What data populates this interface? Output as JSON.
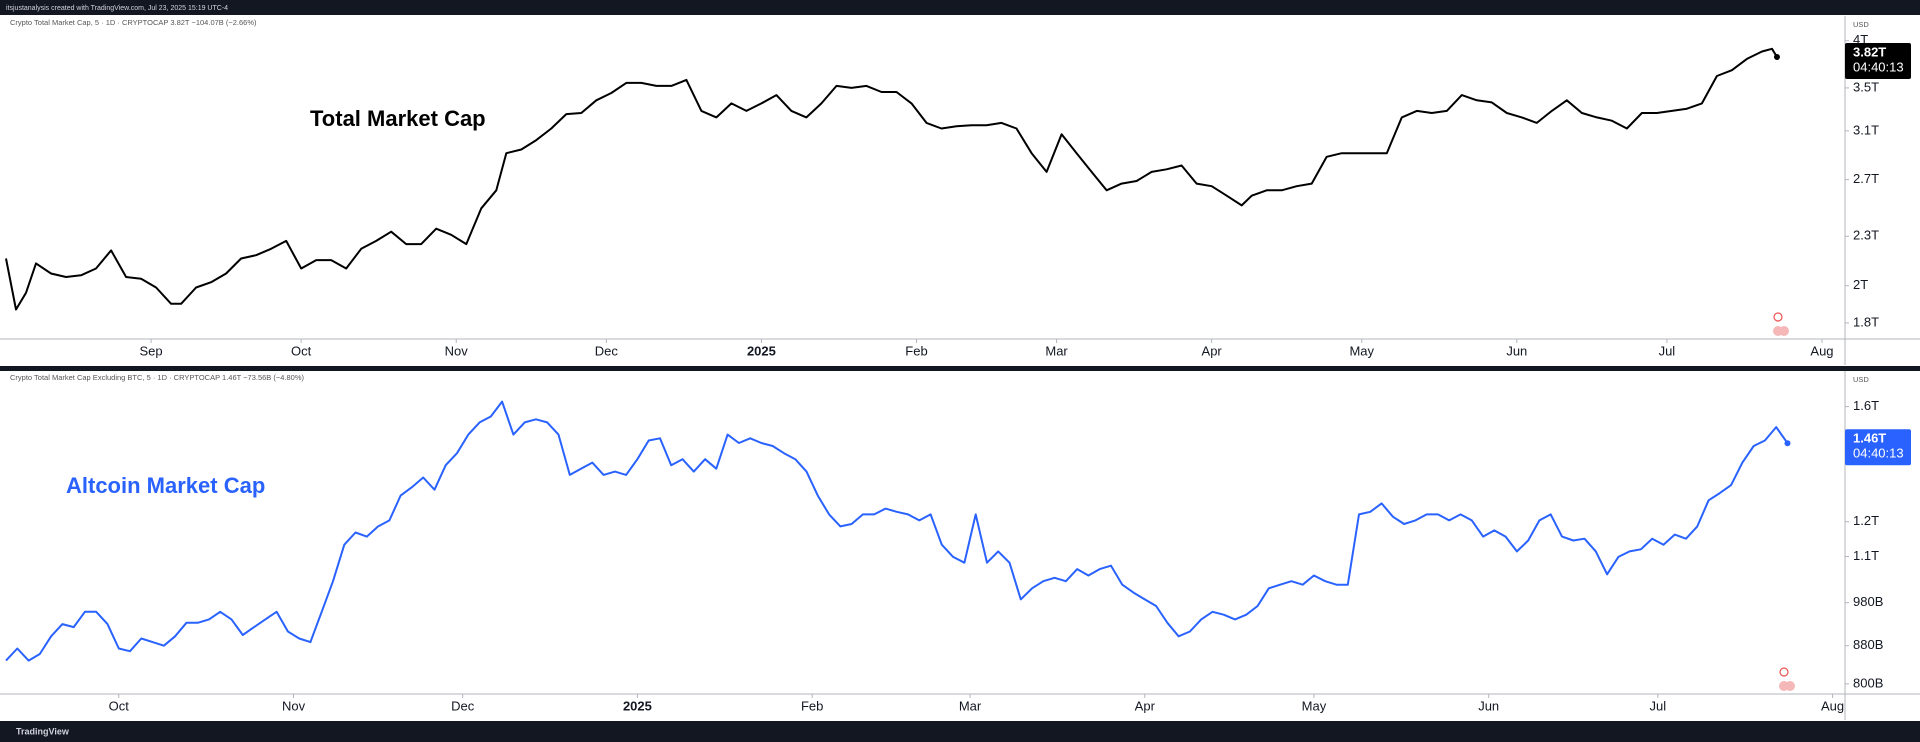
{
  "header": "itsjustanalysis created with TradingView.com, Jul 23, 2025 15:19 UTC-4",
  "footer": "TradingView",
  "chart_data": [
    {
      "type": "line",
      "subtitle": "Crypto Total Market Cap, 5 · 1D · CRYPTOCAP  3.82T  −104.07B (−2.66%)",
      "annotation": "Total Market Cap",
      "currency": "USD",
      "last_label": "3.82T",
      "countdown": "04:40:13",
      "color": "#000000",
      "box_color": "#000000",
      "log_scale": true,
      "x": [
        0,
        2,
        4,
        6,
        9,
        12,
        15,
        18,
        21,
        24,
        27,
        30,
        33,
        35,
        38,
        41,
        44,
        47,
        50,
        53,
        56,
        59,
        62,
        65,
        68,
        71,
        74,
        77,
        80,
        83,
        86,
        89,
        92,
        95,
        98,
        100,
        103,
        106,
        109,
        112,
        115,
        118,
        121,
        124,
        127,
        130,
        133,
        136,
        139,
        142,
        145,
        148,
        151,
        154,
        157,
        160,
        163,
        166,
        169,
        172,
        175,
        178,
        181,
        184,
        187,
        190,
        193,
        196,
        199,
        202,
        205,
        208,
        211,
        214,
        217,
        220,
        223,
        226,
        229,
        232,
        235,
        238,
        241,
        244,
        247,
        249,
        252,
        255,
        258,
        261,
        264,
        267,
        270,
        273,
        276,
        279,
        282,
        285,
        288,
        291,
        294,
        297,
        300,
        303,
        306,
        309,
        312,
        315,
        318,
        321,
        324,
        327,
        330,
        333,
        336,
        339,
        342,
        345,
        348,
        351,
        353,
        354
      ],
      "values": [
        2.16,
        1.87,
        1.96,
        2.13,
        2.07,
        2.05,
        2.06,
        2.1,
        2.21,
        2.05,
        2.04,
        1.99,
        1.9,
        1.9,
        1.99,
        2.02,
        2.07,
        2.16,
        2.18,
        2.22,
        2.27,
        2.1,
        2.15,
        2.15,
        2.1,
        2.22,
        2.27,
        2.33,
        2.25,
        2.25,
        2.35,
        2.31,
        2.25,
        2.49,
        2.62,
        2.91,
        2.94,
        3.02,
        3.12,
        3.25,
        3.26,
        3.38,
        3.45,
        3.55,
        3.55,
        3.52,
        3.52,
        3.58,
        3.28,
        3.22,
        3.35,
        3.28,
        3.35,
        3.43,
        3.28,
        3.22,
        3.35,
        3.52,
        3.5,
        3.52,
        3.46,
        3.46,
        3.35,
        3.17,
        3.12,
        3.14,
        3.15,
        3.15,
        3.17,
        3.12,
        2.91,
        2.76,
        3.07,
        2.91,
        2.76,
        2.62,
        2.67,
        2.69,
        2.76,
        2.78,
        2.81,
        2.67,
        2.65,
        2.58,
        2.51,
        2.58,
        2.62,
        2.62,
        2.65,
        2.67,
        2.88,
        2.91,
        2.91,
        2.91,
        2.91,
        3.22,
        3.28,
        3.26,
        3.28,
        3.43,
        3.38,
        3.36,
        3.26,
        3.22,
        3.17,
        3.28,
        3.38,
        3.26,
        3.22,
        3.19,
        3.12,
        3.26,
        3.26,
        3.28,
        3.3,
        3.35,
        3.62,
        3.68,
        3.8,
        3.88,
        3.91,
        3.82
      ],
      "xlim": [
        0,
        367.6
      ],
      "xticks": [
        {
          "value": 29,
          "label": "Sep"
        },
        {
          "value": 59,
          "label": "Oct"
        },
        {
          "value": 90,
          "label": "Nov"
        },
        {
          "value": 120,
          "label": "Dec"
        },
        {
          "value": 151,
          "label": "2025"
        },
        {
          "value": 182,
          "label": "Feb"
        },
        {
          "value": 210,
          "label": "Mar"
        },
        {
          "value": 241,
          "label": "Apr"
        },
        {
          "value": 271,
          "label": "May"
        },
        {
          "value": 302,
          "label": "Jun"
        },
        {
          "value": 332,
          "label": "Jul"
        },
        {
          "value": 363,
          "label": "Aug"
        }
      ],
      "ylim": [
        1.72,
        4.29
      ],
      "yticks": [
        {
          "value": 4,
          "label": "4T"
        },
        {
          "value": 3.5,
          "label": "3.5T"
        },
        {
          "value": 3.1,
          "label": "3.1T"
        },
        {
          "value": 2.7,
          "label": "2.7T"
        },
        {
          "value": 2.3,
          "label": "2.3T"
        },
        {
          "value": 2,
          "label": "2T"
        },
        {
          "value": 1.8,
          "label": "1.8T"
        }
      ]
    },
    {
      "type": "line",
      "subtitle": "Crypto Total Market Cap Excluding BTC, 5 · 1D · CRYPTOCAP  1.46T  −73.56B (−4.80%)",
      "annotation": "Altcoin Market Cap",
      "currency": "USD",
      "last_label": "1.46T",
      "countdown": "04:40:13",
      "color": "#2962ff",
      "box_color": "#2962ff",
      "log_scale": true,
      "x": [
        0,
        2,
        4,
        6,
        8,
        10,
        12,
        14,
        16,
        18,
        20,
        22,
        24,
        26,
        28,
        30,
        32,
        34,
        36,
        38,
        40,
        42,
        44,
        46,
        48,
        50,
        52,
        54,
        56,
        58,
        60,
        62,
        64,
        66,
        68,
        70,
        72,
        74,
        76,
        78,
        80,
        82,
        84,
        86,
        88,
        90,
        92,
        94,
        96,
        98,
        100,
        102,
        104,
        106,
        108,
        110,
        112,
        114,
        116,
        118,
        120,
        122,
        124,
        126,
        128,
        130,
        132,
        134,
        136,
        138,
        140,
        142,
        144,
        146,
        148,
        150,
        152,
        154,
        156,
        158,
        160,
        162,
        164,
        166,
        168,
        170,
        172,
        174,
        176,
        178,
        180,
        182,
        184,
        186,
        188,
        190,
        192,
        194,
        196,
        198,
        200,
        202,
        204,
        206,
        208,
        210,
        212,
        214,
        216,
        218,
        220,
        222,
        224,
        226,
        228,
        230,
        232,
        234,
        236,
        238,
        240,
        242,
        244,
        246,
        248,
        250,
        252,
        254,
        256,
        258,
        260,
        262,
        264,
        266,
        268,
        270,
        272,
        274,
        276,
        278,
        280,
        282,
        284,
        286,
        288,
        290,
        292,
        294,
        296,
        298,
        300,
        302,
        304,
        306,
        308,
        310,
        312,
        314,
        316
      ],
      "values": [
        0.848,
        0.874,
        0.848,
        0.862,
        0.901,
        0.929,
        0.922,
        0.958,
        0.958,
        0.929,
        0.874,
        0.868,
        0.896,
        0.888,
        0.88,
        0.901,
        0.932,
        0.932,
        0.94,
        0.958,
        0.94,
        0.904,
        0.922,
        0.94,
        0.958,
        0.912,
        0.896,
        0.888,
        0.958,
        1.034,
        1.133,
        1.168,
        1.156,
        1.186,
        1.204,
        1.281,
        1.308,
        1.34,
        1.3,
        1.382,
        1.424,
        1.492,
        1.538,
        1.561,
        1.62,
        1.492,
        1.538,
        1.55,
        1.538,
        1.492,
        1.349,
        1.37,
        1.391,
        1.349,
        1.36,
        1.349,
        1.403,
        1.47,
        1.478,
        1.382,
        1.403,
        1.36,
        1.403,
        1.37,
        1.492,
        1.461,
        1.478,
        1.461,
        1.45,
        1.424,
        1.403,
        1.36,
        1.281,
        1.222,
        1.186,
        1.193,
        1.222,
        1.222,
        1.24,
        1.23,
        1.222,
        1.204,
        1.222,
        1.133,
        1.099,
        1.083,
        1.222,
        1.083,
        1.114,
        1.083,
        0.988,
        1.016,
        1.034,
        1.043,
        1.034,
        1.066,
        1.049,
        1.066,
        1.075,
        1.025,
        1.005,
        0.988,
        0.972,
        0.932,
        0.901,
        0.912,
        0.94,
        0.958,
        0.951,
        0.94,
        0.951,
        0.972,
        1.016,
        1.025,
        1.034,
        1.025,
        1.049,
        1.034,
        1.025,
        1.025,
        1.222,
        1.23,
        1.256,
        1.215,
        1.193,
        1.204,
        1.222,
        1.222,
        1.204,
        1.222,
        1.204,
        1.156,
        1.174,
        1.156,
        1.114,
        1.145,
        1.204,
        1.222,
        1.156,
        1.145,
        1.15,
        1.114,
        1.052,
        1.099,
        1.114,
        1.12,
        1.15,
        1.133,
        1.162,
        1.15,
        1.186,
        1.266,
        1.289,
        1.315,
        1.391,
        1.45,
        1.47,
        1.52,
        1.46
      ],
      "xlim": [
        0,
        326.2
      ],
      "xticks": [
        {
          "value": 20,
          "label": "Oct"
        },
        {
          "value": 51,
          "label": "Nov"
        },
        {
          "value": 81,
          "label": "Dec"
        },
        {
          "value": 112,
          "label": "2025"
        },
        {
          "value": 143,
          "label": "Feb"
        },
        {
          "value": 171,
          "label": "Mar"
        },
        {
          "value": 202,
          "label": "Apr"
        },
        {
          "value": 232,
          "label": "May"
        },
        {
          "value": 263,
          "label": "Jun"
        },
        {
          "value": 293,
          "label": "Jul"
        },
        {
          "value": 324,
          "label": "Aug"
        }
      ],
      "ylim": [
        0.78,
        1.749
      ],
      "yticks": [
        {
          "value": 1.6,
          "label": "1.6T"
        },
        {
          "value": 1.2,
          "label": "1.2T"
        },
        {
          "value": 1.1,
          "label": "1.1T"
        },
        {
          "value": 0.98,
          "label": "980B"
        },
        {
          "value": 0.88,
          "label": "880B"
        },
        {
          "value": 0.8,
          "label": "800B"
        }
      ]
    }
  ]
}
